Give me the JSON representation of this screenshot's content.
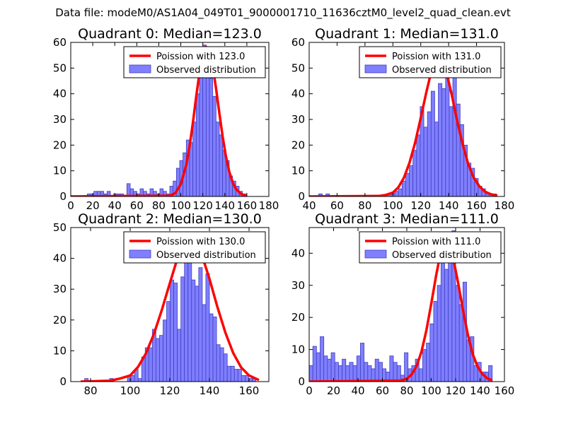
{
  "figure": {
    "suptitle": "Data file: modeM0/AS1A04_049T01_9000001710_11636cztM0_level2_quad_clean.evt"
  },
  "colors": {
    "bar_fill": "#7f7fff",
    "bar_edge": "#3f3fbf",
    "poisson_line": "#ff0000"
  },
  "chart_data": [
    {
      "type": "bar",
      "title": "Quadrant 0: Median=123.0",
      "xlim": [
        0,
        180
      ],
      "ylim": [
        0,
        60
      ],
      "xticks": [
        0,
        20,
        40,
        60,
        80,
        100,
        120,
        140,
        160,
        180
      ],
      "yticks": [
        0,
        10,
        20,
        30,
        40,
        50,
        60
      ],
      "legend": {
        "position": "top-right",
        "line_label": "Poission with 123.0",
        "bar_label": "Observed distribution"
      },
      "bin_width": 3.0,
      "bins_left": [
        15,
        18,
        21,
        24,
        27,
        30,
        33,
        36,
        39,
        42,
        45,
        48,
        51,
        54,
        57,
        60,
        63,
        66,
        69,
        72,
        75,
        78,
        81,
        84,
        87,
        90,
        93,
        96,
        99,
        102,
        105,
        108,
        111,
        114,
        117,
        120,
        123,
        126,
        129,
        132,
        135,
        138,
        141,
        144,
        147,
        150,
        153,
        156
      ],
      "counts": [
        1,
        1,
        2,
        2,
        2,
        1,
        2,
        0,
        1,
        1,
        1,
        0,
        5,
        3,
        2,
        1,
        3,
        2,
        1,
        3,
        2,
        1,
        3,
        2,
        1,
        4,
        6,
        11,
        14,
        17,
        22,
        21,
        29,
        40,
        52,
        59,
        57,
        46,
        39,
        29,
        24,
        18,
        14,
        8,
        6,
        4,
        2,
        1
      ],
      "poisson": {
        "x": [
          0,
          90,
          95,
          100,
          105,
          108,
          111,
          114,
          117,
          120,
          123,
          126,
          129,
          132,
          135,
          138,
          141,
          144,
          147,
          150,
          155,
          160
        ],
        "y": [
          0,
          0.3,
          1.3,
          4.8,
          12.3,
          19.6,
          28.8,
          38.9,
          48.3,
          55.4,
          58.3,
          56.6,
          50.8,
          42.2,
          32.5,
          23.3,
          15.6,
          9.7,
          5.6,
          3.0,
          0.9,
          0.2
        ]
      }
    },
    {
      "type": "bar",
      "title": "Quadrant 1: Median=131.0",
      "xlim": [
        40,
        180
      ],
      "ylim": [
        0,
        60
      ],
      "xticks": [
        40,
        60,
        80,
        100,
        120,
        140,
        160,
        180
      ],
      "yticks": [
        0,
        10,
        20,
        30,
        40,
        50,
        60
      ],
      "legend": {
        "position": "top-right",
        "line_label": "Poission with 131.0",
        "bar_label": "Observed distribution"
      },
      "bin_width": 2.6,
      "bins_left": [
        46.8,
        49.4,
        52.0,
        54.6,
        57.2,
        59.8,
        62.4,
        65.0,
        67.6,
        70.2,
        72.8,
        75.4,
        78.0,
        80.6,
        83.2,
        85.8,
        88.4,
        91.0,
        93.6,
        96.2,
        98.8,
        101.4,
        104.0,
        106.6,
        109.2,
        111.8,
        114.4,
        117.0,
        119.6,
        122.2,
        124.8,
        127.4,
        130.0,
        132.6,
        135.2,
        137.8,
        140.4,
        143.0,
        145.6,
        148.2,
        150.8,
        153.4,
        156.0,
        158.6,
        161.2,
        163.8,
        166.4,
        169.0,
        171.6
      ],
      "counts": [
        1,
        0,
        1,
        0,
        0,
        0,
        0,
        0,
        0,
        0,
        0,
        0,
        0,
        0,
        0,
        0,
        0,
        0,
        0,
        1,
        1,
        2,
        3,
        6,
        9,
        12,
        18,
        24,
        35,
        27,
        33,
        41,
        29,
        44,
        42,
        55,
        35,
        47,
        36,
        28,
        20,
        13,
        11,
        7,
        4,
        3,
        1,
        1,
        1
      ],
      "poisson": {
        "x": [
          40,
          90,
          95,
          100,
          104,
          108,
          112,
          116,
          120,
          124,
          128,
          131,
          134,
          138,
          142,
          146,
          150,
          154,
          158,
          162,
          166,
          170,
          175
        ],
        "y": [
          0,
          0.2,
          0.6,
          1.5,
          3.6,
          7.4,
          13.2,
          21.0,
          30.6,
          40.6,
          49.7,
          54.7,
          55.0,
          49.3,
          40.1,
          29.7,
          20.4,
          12.7,
          7.3,
          4.0,
          1.9,
          0.9,
          0.3
        ]
      }
    },
    {
      "type": "bar",
      "title": "Quadrant 2: Median=130.0",
      "xlim": [
        70,
        170
      ],
      "ylim": [
        0,
        50
      ],
      "xticks": [
        80,
        100,
        120,
        140,
        160
      ],
      "yticks": [
        0,
        10,
        20,
        30,
        40,
        50
      ],
      "legend": {
        "position": "top-right",
        "line_label": "Poission with 130.0",
        "bar_label": "Observed distribution"
      },
      "bin_width": 1.8,
      "bins_left": [
        77.0,
        78.8,
        80.6,
        82.4,
        84.2,
        86.0,
        87.8,
        89.6,
        91.4,
        93.2,
        95.0,
        96.8,
        98.6,
        100.4,
        102.2,
        104.0,
        105.8,
        107.6,
        109.4,
        111.2,
        113.0,
        114.8,
        116.6,
        118.4,
        120.2,
        122.0,
        123.8,
        125.6,
        127.4,
        129.2,
        131.0,
        132.8,
        134.6,
        136.4,
        138.2,
        140.0,
        141.8,
        143.6,
        145.4,
        147.2,
        149.0,
        150.8,
        152.6,
        154.4,
        156.2,
        158.0,
        159.8,
        161.6
      ],
      "counts": [
        1,
        0,
        0,
        0,
        0,
        0,
        0,
        1,
        0,
        0,
        0,
        0,
        2,
        2,
        4,
        1,
        8,
        11,
        11,
        17,
        14,
        15,
        20,
        26,
        33,
        32,
        17,
        34,
        43,
        47,
        33,
        31,
        37,
        25,
        35,
        22,
        21,
        12,
        11,
        9,
        5,
        5,
        4,
        4,
        2,
        2,
        1,
        1
      ],
      "poisson": {
        "x": [
          75,
          90,
          95,
          100,
          104,
          108,
          112,
          116,
          120,
          124,
          128,
          130,
          132,
          136,
          140,
          144,
          148,
          152,
          156,
          160,
          165
        ],
        "y": [
          0,
          0.3,
          1.0,
          2.0,
          4.8,
          9.2,
          15.5,
          23.3,
          31.9,
          40.3,
          47.0,
          48.2,
          47.0,
          41.5,
          33.4,
          24.3,
          16.0,
          9.3,
          4.6,
          2.0,
          0.5
        ]
      }
    },
    {
      "type": "bar",
      "title": "Quadrant 3: Median=111.0",
      "xlim": [
        0,
        160
      ],
      "ylim": [
        0,
        48
      ],
      "xticks": [
        0,
        20,
        40,
        60,
        80,
        100,
        120,
        140,
        160
      ],
      "yticks": [
        0,
        10,
        20,
        30,
        40
      ],
      "legend": {
        "position": "top-right",
        "line_label": "Poission with 111.0",
        "bar_label": "Observed distribution"
      },
      "bin_width": 3.0,
      "bins_left": [
        0,
        3,
        6,
        9,
        12,
        15,
        18,
        21,
        24,
        27,
        30,
        33,
        36,
        39,
        42,
        45,
        48,
        51,
        54,
        57,
        60,
        63,
        66,
        69,
        72,
        75,
        78,
        81,
        84,
        87,
        90,
        93,
        96,
        99,
        102,
        105,
        108,
        111,
        114,
        117,
        120,
        123,
        126,
        129,
        132,
        135,
        138,
        141,
        144,
        147
      ],
      "counts": [
        5,
        11,
        9,
        14,
        8,
        7,
        9,
        6,
        5,
        7,
        5,
        6,
        5,
        8,
        12,
        6,
        5,
        4,
        7,
        6,
        4,
        3,
        8,
        6,
        5,
        2,
        9,
        4,
        5,
        7,
        4,
        10,
        12,
        18,
        25,
        30,
        40,
        35,
        45,
        47,
        30,
        24,
        31,
        13,
        14,
        5,
        6,
        3,
        3,
        5
      ],
      "poisson": {
        "x": [
          0,
          75,
          80,
          84,
          88,
          92,
          96,
          100,
          104,
          108,
          111,
          114,
          118,
          122,
          126,
          130,
          134,
          138,
          142,
          146,
          150
        ],
        "y": [
          0,
          0.3,
          0.9,
          2.2,
          4.8,
          9.3,
          15.9,
          24.2,
          33.0,
          40.8,
          44.0,
          43.3,
          38.5,
          30.8,
          22.3,
          14.6,
          8.6,
          4.7,
          2.3,
          1.0,
          0.4
        ]
      }
    }
  ]
}
